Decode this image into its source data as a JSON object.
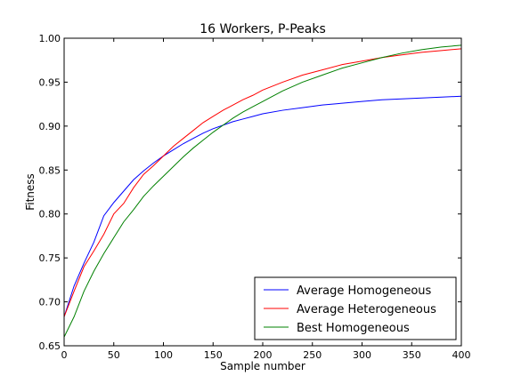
{
  "chart_data": {
    "type": "line",
    "title": "16 Workers, P-Peaks",
    "xlabel": "Sample number",
    "ylabel": "Fitness",
    "xlim": [
      0,
      400
    ],
    "ylim": [
      0.65,
      1.0
    ],
    "xticks": [
      0,
      50,
      100,
      150,
      200,
      250,
      300,
      350,
      400
    ],
    "yticks": [
      0.65,
      0.7,
      0.75,
      0.8,
      0.85,
      0.9,
      0.95,
      1.0
    ],
    "xtick_labels": [
      "0",
      "50",
      "100",
      "150",
      "200",
      "250",
      "300",
      "350",
      "400"
    ],
    "ytick_labels": [
      "0.65",
      "0.70",
      "0.75",
      "0.80",
      "0.85",
      "0.90",
      "0.95",
      "1.00"
    ],
    "grid": false,
    "legend_position": "bottom-right",
    "series": [
      {
        "name": "Average Homogeneous",
        "color": "#0000ff",
        "x": [
          0,
          10,
          20,
          30,
          40,
          50,
          60,
          70,
          80,
          90,
          100,
          110,
          120,
          130,
          140,
          150,
          160,
          170,
          180,
          190,
          200,
          220,
          240,
          260,
          280,
          300,
          320,
          340,
          360,
          380,
          400
        ],
        "y": [
          0.683,
          0.718,
          0.744,
          0.768,
          0.798,
          0.813,
          0.826,
          0.839,
          0.849,
          0.858,
          0.866,
          0.873,
          0.88,
          0.886,
          0.892,
          0.897,
          0.901,
          0.905,
          0.908,
          0.911,
          0.914,
          0.918,
          0.921,
          0.924,
          0.926,
          0.928,
          0.93,
          0.931,
          0.932,
          0.933,
          0.934
        ]
      },
      {
        "name": "Average Heterogeneous",
        "color": "#ff0000",
        "x": [
          0,
          10,
          20,
          30,
          40,
          50,
          60,
          70,
          80,
          90,
          100,
          110,
          120,
          130,
          140,
          150,
          160,
          170,
          180,
          190,
          200,
          220,
          240,
          260,
          280,
          300,
          320,
          340,
          360,
          380,
          400
        ],
        "y": [
          0.683,
          0.712,
          0.74,
          0.758,
          0.777,
          0.8,
          0.812,
          0.83,
          0.845,
          0.855,
          0.866,
          0.877,
          0.886,
          0.895,
          0.904,
          0.911,
          0.918,
          0.924,
          0.93,
          0.935,
          0.941,
          0.95,
          0.958,
          0.964,
          0.97,
          0.974,
          0.978,
          0.981,
          0.984,
          0.986,
          0.988
        ]
      },
      {
        "name": "Best Homogeneous",
        "color": "#008000",
        "x": [
          0,
          10,
          20,
          30,
          40,
          50,
          60,
          70,
          80,
          90,
          100,
          110,
          120,
          130,
          140,
          150,
          160,
          170,
          180,
          190,
          200,
          220,
          240,
          260,
          280,
          300,
          320,
          340,
          360,
          380,
          400
        ],
        "y": [
          0.66,
          0.683,
          0.712,
          0.735,
          0.755,
          0.773,
          0.791,
          0.805,
          0.82,
          0.832,
          0.843,
          0.854,
          0.865,
          0.875,
          0.884,
          0.893,
          0.901,
          0.909,
          0.916,
          0.922,
          0.928,
          0.94,
          0.95,
          0.958,
          0.966,
          0.972,
          0.978,
          0.983,
          0.987,
          0.99,
          0.992
        ]
      }
    ]
  }
}
